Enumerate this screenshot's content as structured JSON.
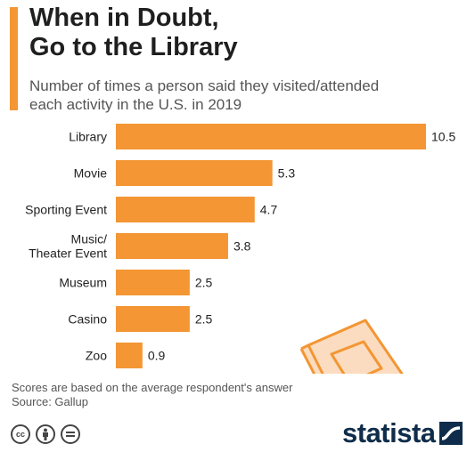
{
  "header": {
    "title_line1": "When in Doubt,",
    "title_line2": "Go to the Library",
    "subtitle_line1": "Number of times a person said they visited/attended",
    "subtitle_line2": "each activity in the U.S. in 2019"
  },
  "chart_data": {
    "type": "bar",
    "orientation": "horizontal",
    "categories": [
      [
        "Library"
      ],
      [
        "Movie"
      ],
      [
        "Sporting Event"
      ],
      [
        "Music/",
        "Theater Event"
      ],
      [
        "Museum"
      ],
      [
        "Casino"
      ],
      [
        "Zoo"
      ]
    ],
    "values": [
      10.5,
      5.3,
      4.7,
      3.8,
      2.5,
      2.5,
      0.9
    ],
    "value_labels": [
      "10.5",
      "5.3",
      "4.7",
      "3.8",
      "2.5",
      "2.5",
      "0.9"
    ],
    "xlim": [
      0,
      10.5
    ],
    "grid": false,
    "legend": "none",
    "bar_color": "#f39633"
  },
  "footer": {
    "note": "Scores are based on the average respondent's answer",
    "source": "Source: Gallup",
    "brand": "statista"
  },
  "colors": {
    "accent": "#f39633",
    "brand": "#0f2d4a",
    "illustration_fill": "#fbdcc0"
  },
  "icons": [
    "book-icon",
    "cc-icon",
    "attribution-icon",
    "noderivs-icon",
    "statista-logo-icon"
  ]
}
